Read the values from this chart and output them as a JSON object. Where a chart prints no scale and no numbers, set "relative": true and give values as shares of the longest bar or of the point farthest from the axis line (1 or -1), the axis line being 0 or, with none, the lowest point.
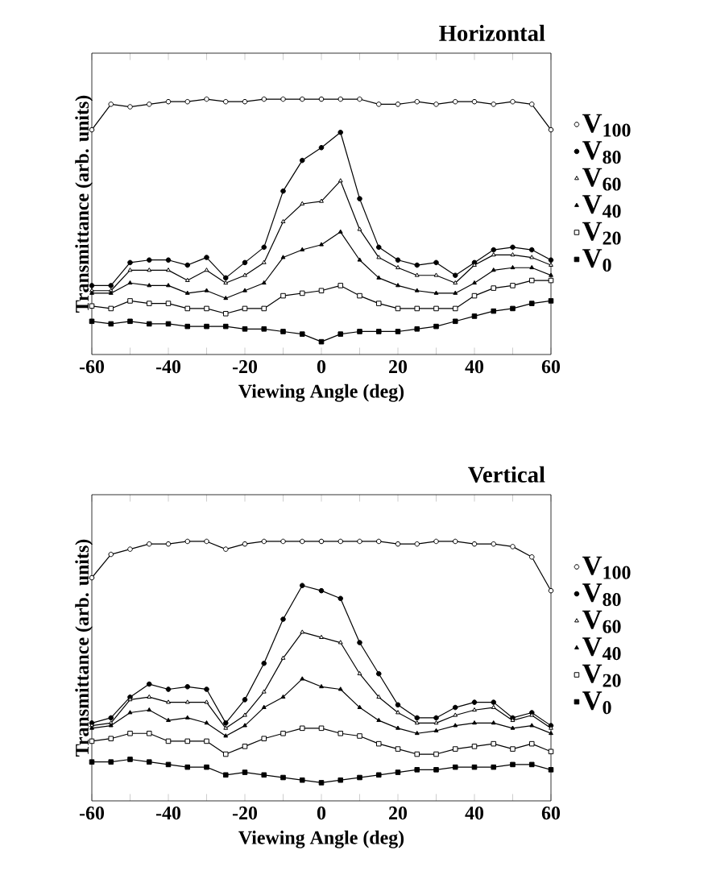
{
  "chart_data": [
    {
      "type": "line",
      "title": "Horizontal",
      "xlabel": "Viewing Angle (deg)",
      "ylabel": "Transmittance (arb. units)",
      "relative": true,
      "legend": "right",
      "tick_labels": "x",
      "xlim": [
        -60,
        60
      ],
      "xticks": [
        -60,
        {
          "value": -50,
          "label": null
        },
        -40,
        {
          "value": -30,
          "label": null
        },
        -20,
        {
          "value": -10,
          "label": null
        },
        0,
        {
          "value": 10,
          "label": null
        },
        20,
        {
          "value": 30,
          "label": null
        },
        40,
        {
          "value": 50,
          "label": null
        },
        60
      ],
      "x": [
        -60,
        -55,
        -50,
        -45,
        -40,
        -35,
        -30,
        -25,
        -20,
        -15,
        -10,
        -5,
        0,
        5,
        10,
        15,
        20,
        25,
        30,
        35,
        40,
        45,
        50,
        55,
        60
      ],
      "series": [
        {
          "name": "V$_{100}$",
          "color": "#000000",
          "marker": "circle",
          "values": [
            0.88,
            0.98,
            0.97,
            0.98,
            0.99,
            0.99,
            1.0,
            0.99,
            0.99,
            1.0,
            1.0,
            1.0,
            1.0,
            1.0,
            1.0,
            0.98,
            0.98,
            0.99,
            0.98,
            0.99,
            0.99,
            0.98,
            0.99,
            0.98,
            0.88
          ]
        },
        {
          "name": "V$_{80}$",
          "color": "#000000",
          "marker": "circle",
          "values": [
            0.27,
            0.27,
            0.36,
            0.37,
            0.37,
            0.35,
            0.38,
            0.3,
            0.36,
            0.42,
            0.64,
            0.76,
            0.81,
            0.87,
            0.61,
            0.42,
            0.37,
            0.35,
            0.36,
            0.31,
            0.36,
            0.41,
            0.42,
            0.41,
            0.37
          ]
        },
        {
          "name": "V$_{60}$",
          "color": "#000000",
          "marker": "triangle",
          "values": [
            0.25,
            0.25,
            0.33,
            0.33,
            0.33,
            0.29,
            0.33,
            0.28,
            0.31,
            0.36,
            0.52,
            0.59,
            0.6,
            0.68,
            0.49,
            0.38,
            0.34,
            0.31,
            0.31,
            0.28,
            0.35,
            0.39,
            0.39,
            0.38,
            0.35
          ]
        },
        {
          "name": "V$_{40}$",
          "color": "#000000",
          "marker": "triangle",
          "values": [
            0.24,
            0.24,
            0.28,
            0.27,
            0.27,
            0.24,
            0.25,
            0.22,
            0.25,
            0.28,
            0.38,
            0.41,
            0.43,
            0.48,
            0.37,
            0.3,
            0.27,
            0.25,
            0.24,
            0.24,
            0.28,
            0.33,
            0.34,
            0.34,
            0.31
          ]
        },
        {
          "name": "V$_{20}$",
          "color": "#000000",
          "marker": "square",
          "values": [
            0.19,
            0.18,
            0.21,
            0.2,
            0.2,
            0.18,
            0.18,
            0.16,
            0.18,
            0.18,
            0.23,
            0.24,
            0.25,
            0.27,
            0.23,
            0.2,
            0.18,
            0.18,
            0.18,
            0.18,
            0.23,
            0.26,
            0.27,
            0.29,
            0.29
          ]
        },
        {
          "name": "V$_{0}$",
          "color": "#000000",
          "marker": "square",
          "values": [
            0.13,
            0.12,
            0.13,
            0.12,
            0.12,
            0.11,
            0.11,
            0.11,
            0.1,
            0.1,
            0.09,
            0.08,
            0.05,
            0.08,
            0.09,
            0.09,
            0.09,
            0.1,
            0.11,
            0.13,
            0.15,
            0.17,
            0.18,
            0.2,
            0.21
          ]
        }
      ]
    },
    {
      "type": "line",
      "title": "Vertical",
      "xlabel": "Viewing Angle (deg)",
      "ylabel": "Transmittance (arb. units)",
      "relative": true,
      "legend": "right",
      "tick_labels": "x",
      "xlim": [
        -60,
        60
      ],
      "xticks": [
        -60,
        {
          "value": -50,
          "label": null
        },
        -40,
        {
          "value": -30,
          "label": null
        },
        -20,
        {
          "value": -10,
          "label": null
        },
        0,
        {
          "value": 10,
          "label": null
        },
        20,
        {
          "value": 30,
          "label": null
        },
        40,
        {
          "value": 50,
          "label": null
        },
        60
      ],
      "x": [
        -60,
        -55,
        -50,
        -45,
        -40,
        -35,
        -30,
        -25,
        -20,
        -15,
        -10,
        -5,
        0,
        5,
        10,
        15,
        20,
        25,
        30,
        35,
        40,
        45,
        50,
        55,
        60
      ],
      "series": [
        {
          "name": "V$_{100}$",
          "color": "#000000",
          "marker": "circle",
          "values": [
            0.86,
            0.95,
            0.97,
            0.99,
            0.99,
            1.0,
            1.0,
            0.97,
            0.99,
            1.0,
            1.0,
            1.0,
            1.0,
            1.0,
            1.0,
            1.0,
            0.99,
            0.99,
            1.0,
            1.0,
            0.99,
            0.99,
            0.98,
            0.94,
            0.81
          ]
        },
        {
          "name": "V$_{80}$",
          "color": "#000000",
          "marker": "circle",
          "values": [
            0.3,
            0.32,
            0.4,
            0.45,
            0.43,
            0.44,
            0.43,
            0.3,
            0.39,
            0.53,
            0.7,
            0.83,
            0.81,
            0.78,
            0.61,
            0.49,
            0.37,
            0.32,
            0.32,
            0.36,
            0.38,
            0.38,
            0.32,
            0.34,
            0.29
          ]
        },
        {
          "name": "V$_{60}$",
          "color": "#000000",
          "marker": "triangle",
          "values": [
            0.29,
            0.3,
            0.39,
            0.4,
            0.38,
            0.38,
            0.38,
            0.28,
            0.33,
            0.42,
            0.55,
            0.65,
            0.63,
            0.61,
            0.49,
            0.4,
            0.34,
            0.3,
            0.3,
            0.33,
            0.35,
            0.36,
            0.31,
            0.33,
            0.28
          ]
        },
        {
          "name": "V$_{40}$",
          "color": "#000000",
          "marker": "triangle",
          "values": [
            0.28,
            0.29,
            0.34,
            0.35,
            0.31,
            0.32,
            0.3,
            0.25,
            0.29,
            0.36,
            0.4,
            0.47,
            0.44,
            0.43,
            0.36,
            0.31,
            0.28,
            0.26,
            0.27,
            0.29,
            0.3,
            0.3,
            0.28,
            0.29,
            0.26
          ]
        },
        {
          "name": "V$_{20}$",
          "color": "#000000",
          "marker": "square",
          "values": [
            0.23,
            0.24,
            0.26,
            0.26,
            0.23,
            0.23,
            0.23,
            0.18,
            0.21,
            0.24,
            0.26,
            0.28,
            0.28,
            0.26,
            0.25,
            0.22,
            0.2,
            0.18,
            0.18,
            0.2,
            0.21,
            0.22,
            0.2,
            0.22,
            0.19
          ]
        },
        {
          "name": "V$_{0}$",
          "color": "#000000",
          "marker": "square",
          "values": [
            0.15,
            0.15,
            0.16,
            0.15,
            0.14,
            0.13,
            0.13,
            0.1,
            0.11,
            0.1,
            0.09,
            0.08,
            0.07,
            0.08,
            0.09,
            0.1,
            0.11,
            0.12,
            0.12,
            0.13,
            0.13,
            0.13,
            0.14,
            0.14,
            0.12
          ]
        }
      ]
    }
  ]
}
